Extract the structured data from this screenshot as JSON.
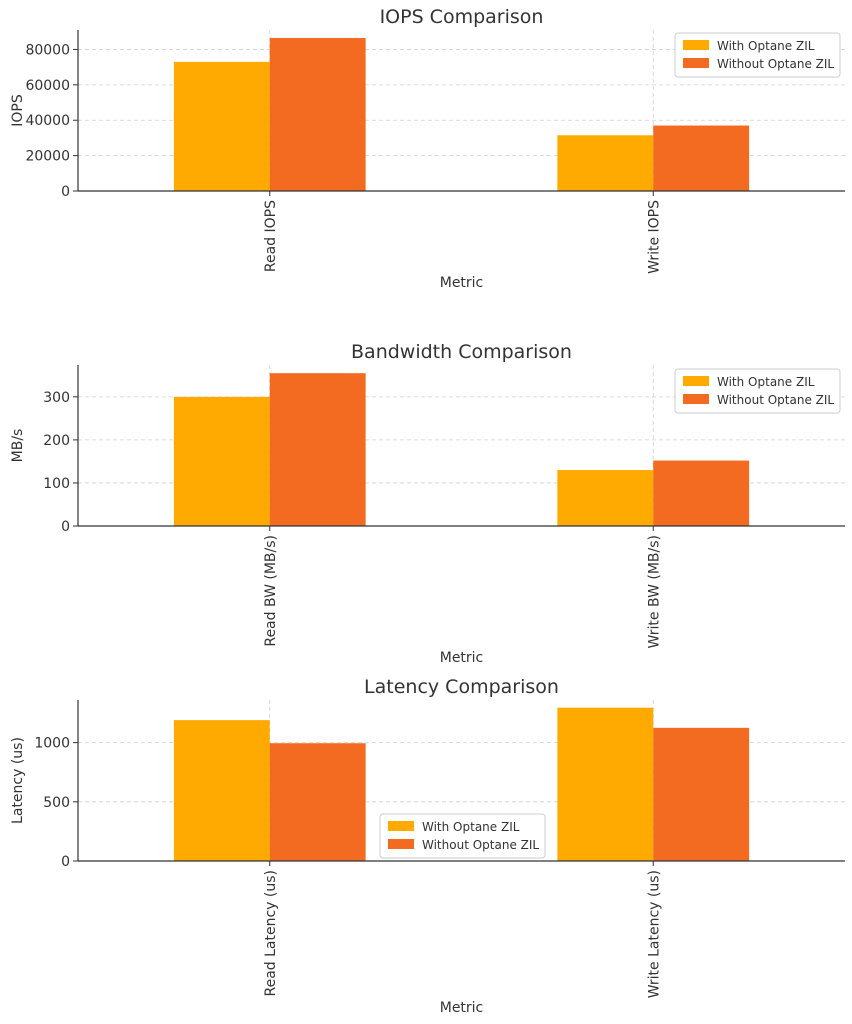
{
  "chart_data": [
    {
      "type": "bar",
      "title": "IOPS Comparison",
      "xlabel": "Metric",
      "ylabel": "IOPS",
      "categories": [
        "Read IOPS",
        "Write IOPS"
      ],
      "series": [
        {
          "name": "With Optane ZIL",
          "values": [
            73000,
            31500
          ],
          "color": "#FFAA00"
        },
        {
          "name": "Without Optane ZIL",
          "values": [
            86500,
            37000
          ],
          "color": "#F26B21"
        }
      ],
      "ylim": [
        0,
        91000
      ],
      "yticks": [
        0,
        20000,
        40000,
        60000,
        80000
      ],
      "grid": true,
      "legend": "top-right"
    },
    {
      "type": "bar",
      "title": "Bandwidth Comparison",
      "xlabel": "Metric",
      "ylabel": "MB/s",
      "categories": [
        "Read BW (MB/s)",
        "Write BW (MB/s)"
      ],
      "series": [
        {
          "name": "With Optane ZIL",
          "values": [
            300,
            130
          ],
          "color": "#FFAA00"
        },
        {
          "name": "Without Optane ZIL",
          "values": [
            355,
            152
          ],
          "color": "#F26B21"
        }
      ],
      "ylim": [
        0,
        374
      ],
      "yticks": [
        0,
        100,
        200,
        300
      ],
      "grid": true,
      "legend": "top-right"
    },
    {
      "type": "bar",
      "title": "Latency Comparison",
      "xlabel": "Metric",
      "ylabel": "Latency (us)",
      "categories": [
        "Read Latency (us)",
        "Write Latency (us)"
      ],
      "series": [
        {
          "name": "With Optane ZIL",
          "values": [
            1190,
            1295
          ],
          "color": "#FFAA00"
        },
        {
          "name": "Without Optane ZIL",
          "values": [
            995,
            1125
          ],
          "color": "#F26B21"
        }
      ],
      "ylim": [
        0,
        1360
      ],
      "yticks": [
        0,
        500,
        1000
      ],
      "grid": true,
      "legend": "lower-center"
    }
  ]
}
